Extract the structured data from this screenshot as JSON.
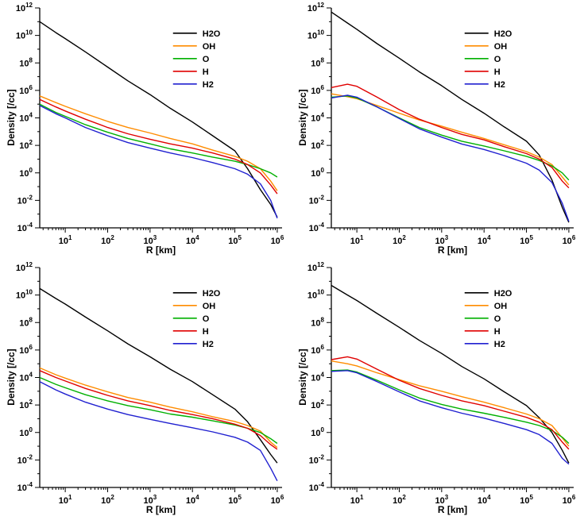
{
  "page": {
    "background": "#ffffff"
  },
  "legend_labels": [
    "H2O",
    "OH",
    "O",
    "H",
    "H2"
  ],
  "series_colors": {
    "H2O": "#000000",
    "OH": "#ff8c00",
    "O": "#00b000",
    "H": "#e00000",
    "H2": "#2020d0"
  },
  "chart_data": [
    {
      "id": "top-left",
      "type": "line",
      "xscale": "log",
      "yscale": "log",
      "xlabel": "R [km]",
      "ylabel": "Density [/cc]",
      "xlim": [
        2.5,
        1300000
      ],
      "ylim": [
        0.0001,
        1000000000000.0
      ],
      "x_major_ticks": [
        10,
        100,
        1000,
        10000,
        100000,
        1000000
      ],
      "y_label_exponents": [
        -4,
        -2,
        0,
        2,
        4,
        6,
        8,
        10,
        12
      ],
      "legend_position": "upper-right-inside",
      "grid": false,
      "x": [
        2.5,
        6,
        10,
        30,
        100,
        300,
        1000,
        3000,
        10000,
        30000,
        100000,
        200000,
        400000,
        700000,
        1000000
      ],
      "series": [
        {
          "name": "H2O",
          "color": "#000000",
          "y": [
            100000000000.0,
            16000000000.0,
            5900000000.0,
            630000000.0,
            50000000.0,
            5000000.0,
            500000.0,
            50000.0,
            5000.0,
            500,
            40,
            2,
            0.06,
            0.005,
            0.0006
          ]
        },
        {
          "name": "OH",
          "color": "#ff8c00",
          "y": [
            400000.0,
            130000.0,
            70000.0,
            20000.0,
            5600.0,
            2000.0,
            800,
            320,
            130,
            45,
            16,
            7,
            2,
            0.25,
            0.05
          ]
        },
        {
          "name": "O",
          "color": "#00b000",
          "y": [
            100000.0,
            25000.0,
            13000.0,
            3200.0,
            900,
            320,
            130,
            56,
            28,
            14,
            7,
            4,
            2,
            1,
            0.5
          ]
        },
        {
          "name": "H",
          "color": "#e00000",
          "y": [
            220000.0,
            63000.0,
            32000.0,
            8000.0,
            2000.0,
            700,
            280,
            130,
            63,
            28,
            10,
            4,
            1,
            0.13,
            0.03
          ]
        },
        {
          "name": "H2",
          "color": "#2020d0",
          "y": [
            80000.0,
            20000.0,
            10000.0,
            2000.0,
            500,
            160,
            63,
            28,
            13,
            5.6,
            2,
            0.8,
            0.16,
            0.01,
            0.0005
          ]
        }
      ]
    },
    {
      "id": "top-right",
      "type": "line",
      "xscale": "log",
      "yscale": "log",
      "xlabel": "R [km]",
      "ylabel": "Density [/cc]",
      "xlim": [
        2.5,
        1300000
      ],
      "ylim": [
        0.0001,
        1000000000000.0
      ],
      "x_major_ticks": [
        10,
        100,
        1000,
        10000,
        100000,
        1000000
      ],
      "y_label_exponents": [
        -4,
        -2,
        0,
        2,
        4,
        6,
        8,
        10,
        12
      ],
      "legend_position": "upper-right-inside",
      "grid": false,
      "x": [
        2.5,
        6,
        10,
        30,
        100,
        300,
        1000,
        3000,
        10000,
        30000,
        100000,
        200000,
        400000,
        700000,
        1000000
      ],
      "series": [
        {
          "name": "H2O",
          "color": "#000000",
          "y": [
            500000000000.0,
            80000000000.0,
            28000000000.0,
            2500000000.0,
            220000000.0,
            22000000.0,
            2200000.0,
            220000.0,
            22000.0,
            2200.0,
            200,
            20,
            0.3,
            0.003,
            0.00025
          ]
        },
        {
          "name": "OH",
          "color": "#ff8c00",
          "y": [
            560000.0,
            350000.0,
            250000.0,
            80000.0,
            22000.0,
            7000.0,
            2500.0,
            900,
            320,
            110,
            35,
            14,
            4,
            0.5,
            0.13
          ]
        },
        {
          "name": "O",
          "color": "#00b000",
          "y": [
            320000.0,
            400000.0,
            280000.0,
            63000.0,
            10000.0,
            2000.0,
            560,
            200,
            90,
            40,
            16,
            8,
            3.2,
            1,
            0.3
          ]
        },
        {
          "name": "H",
          "color": "#e00000",
          "y": [
            1600000.0,
            2800000.0,
            2000000.0,
            320000.0,
            40000.0,
            8000.0,
            2000.0,
            630,
            250,
            80,
            25,
            10,
            2.5,
            0.25,
            0.08
          ]
        },
        {
          "name": "H2",
          "color": "#2020d0",
          "y": [
            280000.0,
            450000.0,
            320000.0,
            63000.0,
            9000.0,
            1600.0,
            400,
            126,
            50,
            18,
            5,
            1.6,
            0.2,
            0.006,
            0.0003
          ]
        }
      ]
    },
    {
      "id": "bottom-left",
      "type": "line",
      "xscale": "log",
      "yscale": "log",
      "xlabel": "R [km]",
      "ylabel": "Density [/cc]",
      "xlim": [
        2.5,
        1300000
      ],
      "ylim": [
        0.0001,
        1000000000000.0
      ],
      "x_major_ticks": [
        10,
        100,
        1000,
        10000,
        100000,
        1000000
      ],
      "y_label_exponents": [
        -4,
        -2,
        0,
        2,
        4,
        6,
        8,
        10,
        12
      ],
      "legend_position": "upper-right-inside",
      "grid": false,
      "x": [
        2.5,
        6,
        10,
        30,
        100,
        300,
        1000,
        3000,
        10000,
        30000,
        100000,
        200000,
        400000,
        700000,
        1000000
      ],
      "series": [
        {
          "name": "H2O",
          "color": "#000000",
          "y": [
            30000000000.0,
            5600000000.0,
            2200000000.0,
            250000000.0,
            25000000.0,
            2800000.0,
            320000.0,
            40000.0,
            5000.0,
            560,
            50,
            6,
            0.3,
            0.025,
            0.006
          ]
        },
        {
          "name": "OH",
          "color": "#ff8c00",
          "y": [
            50000.0,
            16000.0,
            9000.0,
            2800.0,
            900,
            350,
            160,
            70,
            32,
            14,
            6.3,
            3.2,
            1.26,
            0.2,
            0.08
          ]
        },
        {
          "name": "O",
          "color": "#00b000",
          "y": [
            10000.0,
            3200.0,
            1800.0,
            560,
            200,
            90,
            45,
            22,
            13,
            7,
            3.5,
            2,
            1,
            0.35,
            0.16
          ]
        },
        {
          "name": "H",
          "color": "#e00000",
          "y": [
            32000.0,
            10000.0,
            5600.0,
            1600.0,
            500,
            200,
            90,
            40,
            20,
            10,
            4,
            2,
            0.6,
            0.13,
            0.06
          ]
        },
        {
          "name": "H2",
          "color": "#2020d0",
          "y": [
            5000.0,
            1260.0,
            630,
            160,
            50,
            20,
            9,
            4.5,
            2.2,
            1.1,
            0.45,
            0.2,
            0.05,
            0.0025,
            0.0003
          ]
        }
      ]
    },
    {
      "id": "bottom-right",
      "type": "line",
      "xscale": "log",
      "yscale": "log",
      "xlabel": "R [km]",
      "ylabel": "Density [/cc]",
      "xlim": [
        2.5,
        1300000
      ],
      "ylim": [
        0.0001,
        1000000000000.0
      ],
      "x_major_ticks": [
        10,
        100,
        1000,
        10000,
        100000,
        1000000
      ],
      "y_label_exponents": [
        -4,
        -2,
        0,
        2,
        4,
        6,
        8,
        10,
        12
      ],
      "legend_position": "upper-right-inside",
      "grid": false,
      "x": [
        2.5,
        6,
        10,
        30,
        100,
        300,
        1000,
        3000,
        10000,
        30000,
        100000,
        200000,
        400000,
        700000,
        1000000
      ],
      "series": [
        {
          "name": "H2O",
          "color": "#000000",
          "y": [
            50000000000.0,
            10000000000.0,
            4000000000.0,
            450000000.0,
            45000000.0,
            5000000.0,
            560000.0,
            63000.0,
            8000.0,
            900,
            90,
            12,
            1,
            0.05,
            0.006
          ]
        },
        {
          "name": "OH",
          "color": "#ff8c00",
          "y": [
            160000.0,
            100000.0,
            70000.0,
            22000.0,
            7000.0,
            2500.0,
            1000.0,
            400,
            160,
            63,
            22,
            10,
            3.2,
            0.4,
            0.1
          ]
        },
        {
          "name": "O",
          "color": "#00b000",
          "y": [
            32000.0,
            35000.0,
            25000.0,
            6300.0,
            1260.0,
            320,
            110,
            50,
            25,
            12.6,
            5.6,
            3.2,
            1.4,
            0.45,
            0.16
          ]
        },
        {
          "name": "H",
          "color": "#e00000",
          "y": [
            200000.0,
            320000.0,
            220000.0,
            40000.0,
            6300.0,
            1600.0,
            500,
            200,
            90,
            35,
            12.6,
            5.6,
            1.6,
            0.2,
            0.06
          ]
        },
        {
          "name": "H2",
          "color": "#2020d0",
          "y": [
            28000.0,
            32000.0,
            22000.0,
            5000.0,
            900,
            200,
            63,
            25,
            11,
            4.5,
            1.6,
            0.7,
            0.16,
            0.013,
            0.005
          ]
        }
      ]
    }
  ]
}
